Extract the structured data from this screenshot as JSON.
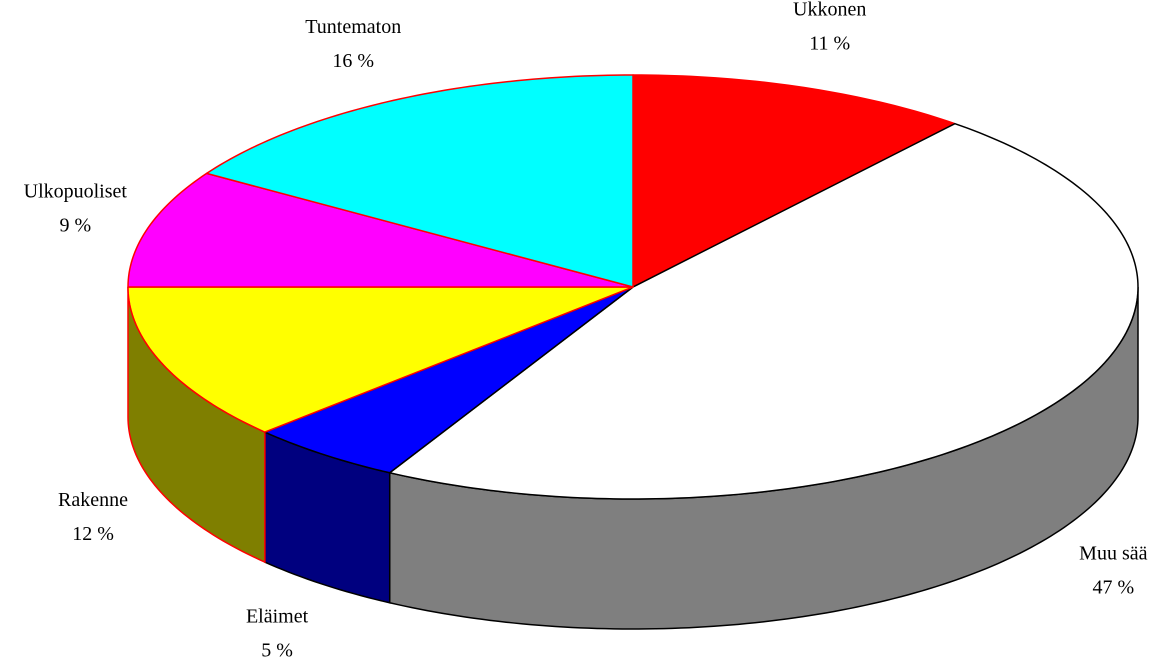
{
  "chart_data": {
    "type": "pie3d",
    "categories": [
      "Ukkonen",
      "Muu sää",
      "Eläimet",
      "Rakenne",
      "Ulkopuoliset",
      "Tuntematon"
    ],
    "values": [
      11,
      47,
      5,
      12,
      9,
      16
    ],
    "value_labels": [
      "11 %",
      "47 %",
      "5 %",
      "12 %",
      "9 %",
      "16 %"
    ],
    "colors": [
      "#ff0000",
      "#ffffff",
      "#0000ff",
      "#ffff00",
      "#ff00ff",
      "#00ffff"
    ],
    "edge_colors": [
      "#ff0000",
      "#000000",
      "#000000",
      "#ff0000",
      "#ff0000",
      "#ff0000"
    ]
  }
}
